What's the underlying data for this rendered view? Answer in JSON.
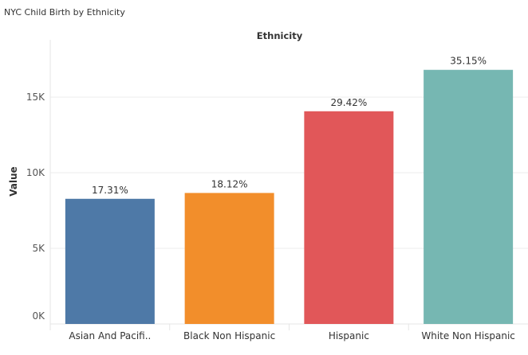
{
  "title": "NYC Child Birth by Ethnicity",
  "chart_data": {
    "type": "bar",
    "title": "NYC Child Birth by Ethnicity",
    "column_header": "Ethnicity",
    "xlabel": "",
    "ylabel": "Value",
    "ylim": [
      0,
      17500
    ],
    "yticks": [
      0,
      5000,
      10000,
      15000
    ],
    "ytick_labels": [
      "0K",
      "5K",
      "10K",
      "15K"
    ],
    "grid": true,
    "categories": [
      "Asian And Pacifi..",
      "Black Non Hispanic",
      "Hispanic",
      "White Non Hispanic"
    ],
    "values": [
      8275,
      8662,
      14064,
      16803
    ],
    "data_labels": [
      "17.31%",
      "18.12%",
      "29.42%",
      "35.15%"
    ],
    "colors": [
      "#4e79a7",
      "#f28e2b",
      "#e15759",
      "#76b7b2"
    ]
  }
}
